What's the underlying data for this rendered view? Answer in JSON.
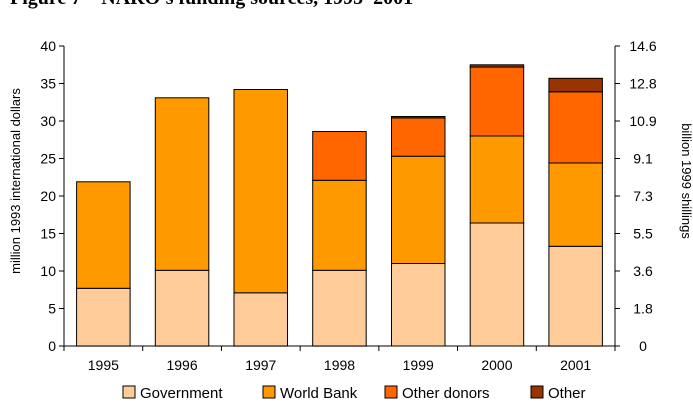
{
  "chart_data": {
    "type": "bar",
    "stacked": true,
    "title": "Figure 7 – NARO's funding sources, 1995–2001",
    "ylabel": "million 1993 international dollars",
    "y2label": "billion 1999 shillings",
    "ylim": [
      0,
      40
    ],
    "yticks": [
      0,
      5,
      10,
      15,
      20,
      25,
      30,
      35,
      40
    ],
    "y2ticks": [
      "0",
      "1.8",
      "3.6",
      "5.5",
      "7.3",
      "9.1",
      "10.9",
      "12.8",
      "14.6"
    ],
    "categories": [
      "1995",
      "1996",
      "1997",
      "1998",
      "1999",
      "2000",
      "2001"
    ],
    "series": [
      {
        "name": "Government",
        "color": "#FFCC99",
        "values": [
          7.7,
          10.1,
          7.1,
          10.1,
          11.0,
          16.4,
          13.3
        ]
      },
      {
        "name": "World Bank",
        "color": "#FF9900",
        "values": [
          14.2,
          23.0,
          27.1,
          12.0,
          14.3,
          11.6,
          11.1
        ]
      },
      {
        "name": "Other donors",
        "color": "#FF6600",
        "values": [
          0,
          0,
          0,
          6.5,
          5.1,
          9.2,
          9.5
        ]
      },
      {
        "name": "Other",
        "color": "#993300",
        "values": [
          0,
          0,
          0,
          0,
          0.2,
          0.3,
          1.8
        ]
      }
    ],
    "grid": false,
    "legend_position": "bottom"
  }
}
